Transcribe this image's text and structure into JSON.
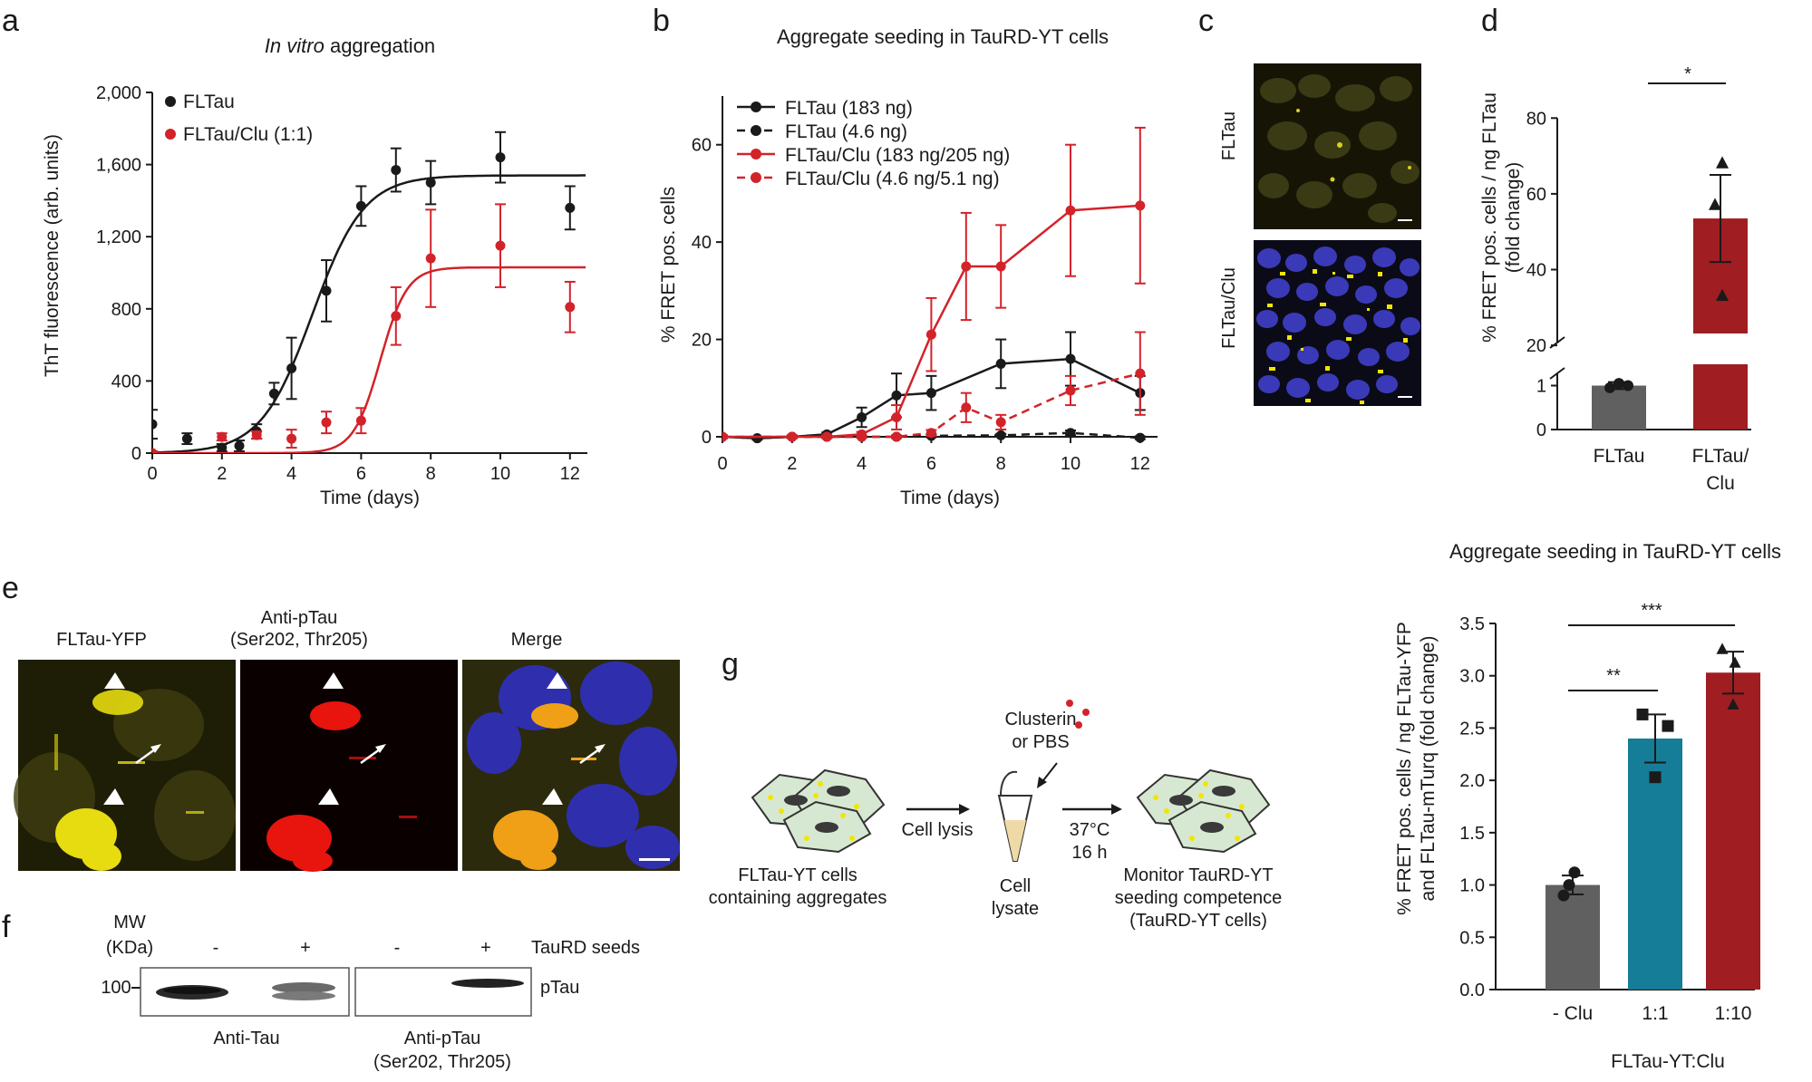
{
  "panels": {
    "a": "a",
    "b": "b",
    "c": "c",
    "d": "d",
    "e": "e",
    "f": "f",
    "g": "g"
  },
  "colors": {
    "black": "#1a1a1a",
    "red": "#d2232a",
    "dark_red": "#a01d22",
    "gray": "#606060",
    "teal": "#157d97",
    "yellow": "#e8e000",
    "nucleus": "#3a3ab8"
  },
  "chart_data": [
    {
      "id": "a",
      "type": "scatter",
      "title_italic": "In vitro",
      "title_rest": " aggregation",
      "xlabel": "Time (days)",
      "ylabel": "ThT fluorescence (arb. units)",
      "xlim": [
        0,
        12.5
      ],
      "ylim": [
        0,
        2000
      ],
      "xticks": [
        0,
        2,
        4,
        6,
        8,
        10,
        12
      ],
      "yticks": [
        0,
        400,
        800,
        1200,
        1600,
        2000
      ],
      "ytick_labels": [
        "0",
        "400",
        "800",
        "1,200",
        "1,600",
        "2,000"
      ],
      "legend": "top-left",
      "series": [
        {
          "name": "FLTau",
          "color": "#1a1a1a",
          "x": [
            0,
            1,
            2,
            2.5,
            3,
            3.5,
            4,
            5,
            6,
            7,
            8,
            10,
            12
          ],
          "y": [
            160,
            80,
            30,
            40,
            120,
            330,
            470,
            900,
            1370,
            1570,
            1500,
            1640,
            1360
          ],
          "err": [
            80,
            30,
            20,
            30,
            40,
            60,
            170,
            170,
            110,
            120,
            120,
            140,
            120
          ],
          "fit": {
            "top": 1540,
            "bottom": 0,
            "mid": 4.6,
            "rate": 1.35
          }
        },
        {
          "name": "FLTau/Clu (1:1)",
          "color": "#d2232a",
          "x": [
            0,
            2,
            3,
            4,
            5,
            6,
            7,
            8,
            10,
            12
          ],
          "y": [
            0,
            90,
            100,
            80,
            170,
            180,
            760,
            1080,
            1150,
            810
          ],
          "err": [
            10,
            20,
            20,
            50,
            60,
            70,
            160,
            270,
            230,
            140
          ],
          "fit": {
            "top": 1030,
            "bottom": 0,
            "mid": 6.55,
            "rate": 2.6
          }
        }
      ]
    },
    {
      "id": "b",
      "type": "line",
      "title": "Aggregate seeding in TauRD-YT cells",
      "xlabel": "Time (days)",
      "ylabel": "% FRET pos. cells",
      "xlim": [
        0,
        12.5
      ],
      "ylim": [
        0,
        70
      ],
      "xticks": [
        0,
        2,
        4,
        6,
        8,
        10,
        12
      ],
      "yticks": [
        0,
        20,
        40,
        60
      ],
      "legend": "top-left",
      "series": [
        {
          "name": "FLTau (183 ng)",
          "color": "#1a1a1a",
          "dash": false,
          "x": [
            0,
            1,
            2,
            3,
            4,
            5,
            6,
            8,
            10,
            12
          ],
          "y": [
            0,
            -0.3,
            0,
            0.5,
            4,
            8.5,
            9,
            15,
            16,
            9
          ],
          "err": [
            0.3,
            0.3,
            0.3,
            0.4,
            2,
            4.5,
            3.5,
            5,
            5.5,
            3.5
          ]
        },
        {
          "name": "FLTau (4.6 ng)",
          "color": "#1a1a1a",
          "dash": true,
          "x": [
            0,
            1,
            2,
            3,
            4,
            5,
            6,
            8,
            10,
            12
          ],
          "y": [
            0,
            -0.3,
            0,
            0,
            0,
            0,
            0.2,
            0.3,
            0.8,
            -0.2
          ],
          "err": [
            0.2,
            0.2,
            0.2,
            0.2,
            0.2,
            0.2,
            0.3,
            0.3,
            0.5,
            0.3
          ]
        },
        {
          "name": "FLTau/Clu (183 ng/205 ng)",
          "color": "#d2232a",
          "dash": false,
          "x": [
            0,
            2,
            3,
            4,
            5,
            6,
            7,
            8,
            10,
            12
          ],
          "y": [
            0,
            0,
            0,
            0.5,
            4,
            21,
            35,
            35,
            46.5,
            47.5
          ],
          "err": [
            0.3,
            0.3,
            0.3,
            0.5,
            2.5,
            7.5,
            11,
            8.5,
            13.5,
            16
          ]
        },
        {
          "name": "FLTau/Clu (4.6 ng/5.1 ng)",
          "color": "#d2232a",
          "dash": true,
          "x": [
            0,
            2,
            3,
            4,
            5,
            6,
            7,
            8,
            10,
            12
          ],
          "y": [
            0,
            0,
            0,
            0,
            0,
            0.8,
            6,
            3,
            9.5,
            13
          ],
          "err": [
            0.2,
            0.2,
            0.2,
            0.2,
            0.3,
            0.6,
            3,
            1.5,
            3,
            8.5
          ]
        }
      ]
    },
    {
      "id": "d",
      "type": "bar",
      "ylabel_line1": "% FRET pos. cells / ng FLTau",
      "ylabel_line2": "(fold change)",
      "categories": [
        "FLTau",
        "FLTau/Clu"
      ],
      "category_labels": [
        [
          "FLTau"
        ],
        [
          "FLTau/",
          "Clu"
        ]
      ],
      "values": [
        1.0,
        53.5
      ],
      "errors": [
        0.08,
        11.5
      ],
      "points": [
        [
          0.95,
          1.05,
          1.0
        ],
        [
          68,
          57,
          33
        ]
      ],
      "markers": [
        "circle",
        "triangle"
      ],
      "bar_colors": [
        "#606060",
        "#a01d22"
      ],
      "broken_axis": true,
      "yticks_lower": [
        0,
        1
      ],
      "yticks_upper": [
        20,
        40,
        60,
        80
      ],
      "significance": "*"
    },
    {
      "id": "h",
      "type": "bar",
      "title": "Aggregate seeding in TauRD-YT cells",
      "ylabel_line1": "% FRET pos. cells / ng FLTau-YFP",
      "ylabel_line2": "and FLTau-mTurq (fold change)",
      "xlabel": "FLTau-YT:Clu",
      "categories": [
        "- Clu",
        "1:1",
        "1:10"
      ],
      "values": [
        1.0,
        2.4,
        3.03
      ],
      "errors": [
        0.09,
        0.23,
        0.2
      ],
      "points": [
        [
          1.12,
          1.0,
          0.9
        ],
        [
          2.63,
          2.52,
          2.03
        ],
        [
          3.25,
          3.12,
          2.72
        ]
      ],
      "markers": [
        "circle",
        "square",
        "triangle"
      ],
      "bar_colors": [
        "#606060",
        "#157d97",
        "#a01d22"
      ],
      "ylim": [
        0,
        3.5
      ],
      "yticks": [
        0.0,
        0.5,
        1.0,
        1.5,
        2.0,
        2.5,
        3.0,
        3.5
      ],
      "significance": [
        "**",
        "***"
      ]
    }
  ],
  "panel_c": {
    "row1": "FLTau",
    "row2": "FLTau/Clu"
  },
  "panel_e": {
    "col1": "FLTau-YFP",
    "col2_line1": "Anti-pTau",
    "col2_line2": "(Ser202, Thr205)",
    "col3": "Merge"
  },
  "panel_f": {
    "mw_line1": "MW",
    "mw_line2": "(KDa)",
    "mw_value": "100",
    "lanes": [
      "-",
      "+",
      "-",
      "+"
    ],
    "seeds_label": "TauRD seeds",
    "band_label": "pTau",
    "blot1": "Anti-Tau",
    "blot2_line1": "Anti-pTau",
    "blot2_line2": "(Ser202, Thr205)"
  },
  "panel_g": {
    "cells_line1": "FLTau-YT cells",
    "cells_line2": "containing aggregates",
    "lysis": "Cell lysis",
    "clu_line1": "Clusterin",
    "clu_line2": "or PBS",
    "lysate_line1": "Cell",
    "lysate_line2": "lysate",
    "temp": "37°C",
    "time": "16 h",
    "monitor_line1": "Monitor TauRD-YT",
    "monitor_line2": "seeding competence",
    "monitor_line3": "(TauRD-YT cells)"
  }
}
